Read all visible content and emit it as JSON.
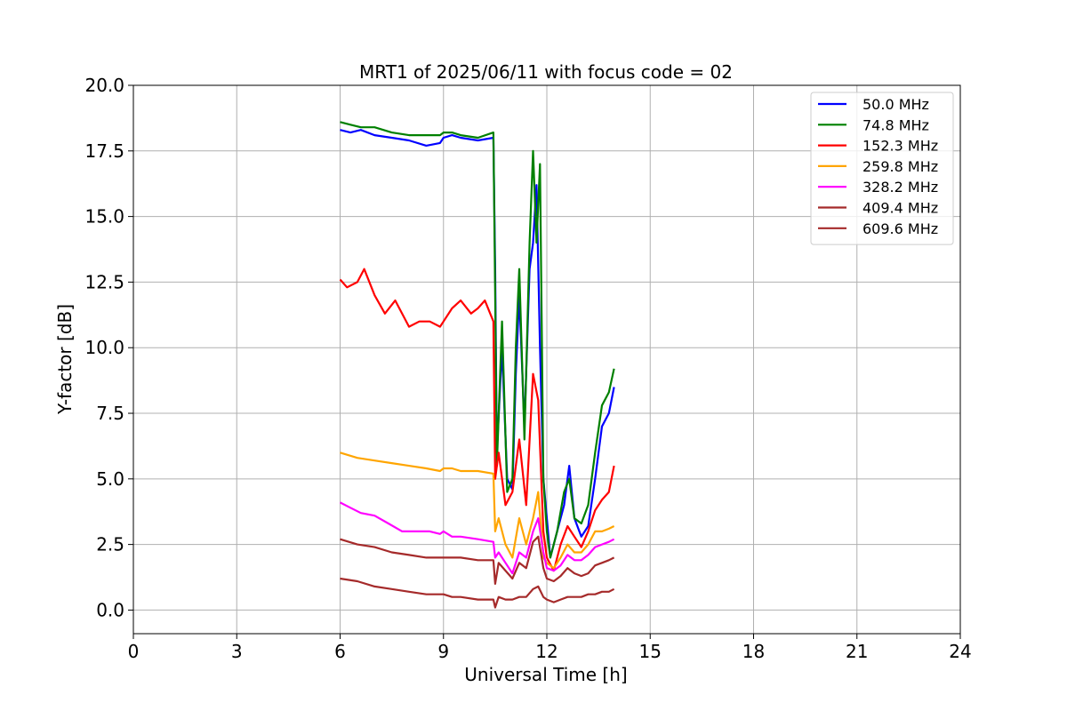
{
  "chart_data": {
    "type": "line",
    "title": "MRT1 of 2025/06/11 with focus code = 02",
    "xlabel": "Universal Time [h]",
    "ylabel": "Y-factor [dB]",
    "xlim": [
      0,
      24
    ],
    "ylim": [
      -0.9,
      20.0
    ],
    "xticks": [
      0,
      3,
      6,
      9,
      12,
      15,
      18,
      21,
      24
    ],
    "xtick_labels": [
      "0",
      "3",
      "6",
      "9",
      "12",
      "15",
      "18",
      "21",
      "24"
    ],
    "yticks": [
      0.0,
      2.5,
      5.0,
      7.5,
      10.0,
      12.5,
      15.0,
      17.5,
      20.0
    ],
    "ytick_labels": [
      "0.0",
      "2.5",
      "5.0",
      "7.5",
      "10.0",
      "12.5",
      "15.0",
      "17.5",
      "20.0"
    ],
    "grid": true,
    "legend_position": "top-right",
    "series": [
      {
        "name": " 50.0 MHz",
        "color": "#0000ff",
        "x": [
          6.0,
          6.3,
          6.6,
          7.0,
          7.5,
          8.0,
          8.5,
          8.9,
          9.0,
          9.25,
          9.5,
          10.0,
          10.45,
          10.5,
          10.55,
          10.7,
          10.85,
          11.0,
          11.1,
          11.2,
          11.35,
          11.5,
          11.6,
          11.7,
          11.8,
          11.9,
          12.0,
          12.1,
          12.3,
          12.5,
          12.65,
          12.8,
          13.0,
          13.2,
          13.4,
          13.6,
          13.8,
          13.95
        ],
        "y": [
          18.3,
          18.2,
          18.3,
          18.1,
          18.0,
          17.9,
          17.7,
          17.8,
          18.0,
          18.1,
          18.0,
          17.9,
          18.0,
          13.0,
          6.0,
          10.0,
          5.0,
          4.6,
          9.0,
          12.0,
          7.0,
          13.0,
          14.0,
          16.2,
          10.0,
          5.0,
          3.5,
          2.0,
          3.0,
          4.0,
          5.5,
          3.5,
          2.8,
          3.2,
          5.0,
          7.0,
          7.5,
          8.5
        ]
      },
      {
        "name": " 74.8 MHz",
        "color": "#008000",
        "x": [
          6.0,
          6.3,
          6.6,
          7.0,
          7.5,
          8.0,
          8.5,
          8.9,
          9.0,
          9.25,
          9.5,
          10.0,
          10.45,
          10.5,
          10.55,
          10.7,
          10.85,
          11.0,
          11.1,
          11.2,
          11.35,
          11.5,
          11.6,
          11.7,
          11.8,
          11.9,
          12.0,
          12.1,
          12.3,
          12.5,
          12.65,
          12.8,
          13.0,
          13.2,
          13.4,
          13.6,
          13.8,
          13.95
        ],
        "y": [
          18.6,
          18.5,
          18.4,
          18.4,
          18.2,
          18.1,
          18.1,
          18.1,
          18.2,
          18.2,
          18.1,
          18.0,
          18.2,
          12.0,
          5.5,
          11.0,
          4.5,
          5.0,
          10.0,
          13.0,
          6.5,
          14.0,
          17.5,
          14.0,
          17.0,
          5.0,
          3.0,
          2.0,
          3.0,
          4.5,
          5.0,
          3.5,
          3.3,
          4.0,
          6.0,
          7.8,
          8.3,
          9.2
        ]
      },
      {
        "name": " 152.3 MHz",
        "color": "#ff0000",
        "x": [
          6.0,
          6.2,
          6.5,
          6.7,
          7.0,
          7.3,
          7.6,
          8.0,
          8.3,
          8.6,
          8.9,
          9.0,
          9.25,
          9.5,
          9.8,
          10.0,
          10.2,
          10.45,
          10.5,
          10.6,
          10.8,
          11.0,
          11.2,
          11.4,
          11.6,
          11.75,
          11.9,
          12.0,
          12.2,
          12.4,
          12.6,
          12.8,
          13.0,
          13.2,
          13.4,
          13.6,
          13.8,
          13.95
        ],
        "y": [
          12.6,
          12.3,
          12.5,
          13.0,
          12.0,
          11.3,
          11.8,
          10.8,
          11.0,
          11.0,
          10.8,
          11.0,
          11.5,
          11.8,
          11.3,
          11.5,
          11.8,
          11.0,
          5.0,
          6.0,
          4.0,
          4.5,
          6.5,
          4.0,
          9.0,
          8.0,
          3.0,
          2.0,
          1.5,
          2.5,
          3.2,
          2.8,
          2.4,
          3.0,
          3.8,
          4.2,
          4.5,
          5.5
        ]
      },
      {
        "name": " 259.8 MHz",
        "color": "#ffa500",
        "x": [
          6.0,
          6.5,
          7.0,
          7.5,
          8.0,
          8.5,
          8.9,
          9.0,
          9.25,
          9.5,
          10.0,
          10.45,
          10.5,
          10.6,
          10.8,
          11.0,
          11.2,
          11.4,
          11.6,
          11.75,
          11.9,
          12.0,
          12.2,
          12.4,
          12.6,
          12.8,
          13.0,
          13.2,
          13.4,
          13.6,
          13.8,
          13.95
        ],
        "y": [
          6.0,
          5.8,
          5.7,
          5.6,
          5.5,
          5.4,
          5.3,
          5.4,
          5.4,
          5.3,
          5.3,
          5.2,
          3.0,
          3.5,
          2.5,
          2.0,
          3.5,
          2.5,
          3.5,
          4.5,
          2.0,
          1.8,
          1.6,
          2.0,
          2.5,
          2.2,
          2.2,
          2.5,
          3.0,
          3.0,
          3.1,
          3.2
        ]
      },
      {
        "name": " 328.2 MHz",
        "color": "#ff00ff",
        "x": [
          6.0,
          6.3,
          6.6,
          7.0,
          7.4,
          7.8,
          8.2,
          8.6,
          8.9,
          9.0,
          9.25,
          9.5,
          10.0,
          10.45,
          10.5,
          10.6,
          10.8,
          11.0,
          11.2,
          11.4,
          11.6,
          11.75,
          11.9,
          12.0,
          12.2,
          12.4,
          12.6,
          12.8,
          13.0,
          13.2,
          13.4,
          13.6,
          13.8,
          13.95
        ],
        "y": [
          4.1,
          3.9,
          3.7,
          3.6,
          3.3,
          3.0,
          3.0,
          3.0,
          2.9,
          3.0,
          2.8,
          2.8,
          2.7,
          2.6,
          2.0,
          2.2,
          1.8,
          1.4,
          2.2,
          2.0,
          3.0,
          3.5,
          2.2,
          1.6,
          1.5,
          1.7,
          2.1,
          1.9,
          1.9,
          2.1,
          2.4,
          2.5,
          2.6,
          2.7
        ]
      },
      {
        "name": " 409.4 MHz",
        "color": "#a52a2a",
        "x": [
          6.0,
          6.5,
          7.0,
          7.5,
          8.0,
          8.5,
          8.9,
          9.0,
          9.25,
          9.5,
          10.0,
          10.45,
          10.5,
          10.6,
          10.8,
          11.0,
          11.2,
          11.4,
          11.6,
          11.75,
          11.9,
          12.0,
          12.2,
          12.4,
          12.6,
          12.8,
          13.0,
          13.2,
          13.4,
          13.6,
          13.8,
          13.95
        ],
        "y": [
          2.7,
          2.5,
          2.4,
          2.2,
          2.1,
          2.0,
          2.0,
          2.0,
          2.0,
          2.0,
          1.9,
          1.9,
          1.0,
          1.8,
          1.5,
          1.2,
          1.8,
          1.6,
          2.6,
          2.8,
          1.6,
          1.2,
          1.1,
          1.3,
          1.6,
          1.4,
          1.3,
          1.4,
          1.7,
          1.8,
          1.9,
          2.0
        ]
      },
      {
        "name": " 609.6 MHz",
        "color": "#a52a2a",
        "x": [
          6.0,
          6.5,
          7.0,
          7.5,
          8.0,
          8.5,
          8.9,
          9.0,
          9.25,
          9.5,
          10.0,
          10.45,
          10.5,
          10.6,
          10.8,
          11.0,
          11.2,
          11.4,
          11.6,
          11.75,
          11.9,
          12.0,
          12.2,
          12.4,
          12.6,
          12.8,
          13.0,
          13.2,
          13.4,
          13.6,
          13.8,
          13.95
        ],
        "y": [
          1.2,
          1.1,
          0.9,
          0.8,
          0.7,
          0.6,
          0.6,
          0.6,
          0.5,
          0.5,
          0.4,
          0.4,
          0.1,
          0.5,
          0.4,
          0.4,
          0.5,
          0.5,
          0.8,
          0.9,
          0.5,
          0.4,
          0.3,
          0.4,
          0.5,
          0.5,
          0.5,
          0.6,
          0.6,
          0.7,
          0.7,
          0.8
        ]
      }
    ]
  }
}
